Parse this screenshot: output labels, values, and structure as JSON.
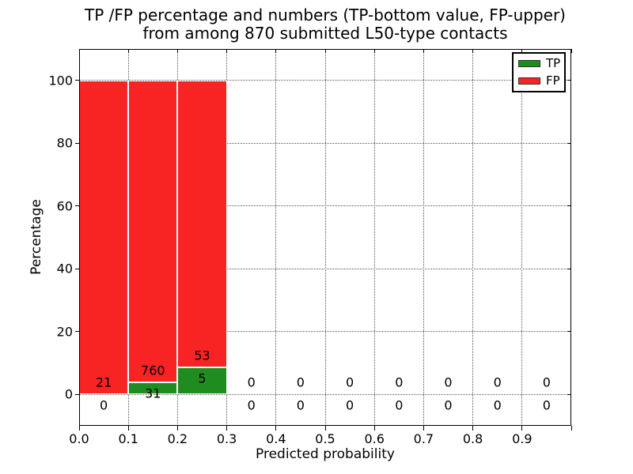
{
  "title": {
    "line1": "TP /FP percentage and numbers (TP-bottom value, FP-upper)",
    "line2": "from among 870 submitted L50-type contacts"
  },
  "axes": {
    "xlabel": "Predicted probability",
    "ylabel": "Percentage"
  },
  "legend": [
    {
      "label": "TP",
      "color": "#1e8c1e"
    },
    {
      "label": "FP",
      "color": "#f82323"
    }
  ],
  "chart_data": {
    "type": "bar",
    "stacked": true,
    "title": "TP /FP percentage and numbers (TP-bottom value, FP-upper) from among 870 submitted L50-type contacts",
    "xlabel": "Predicted probability",
    "ylabel": "Percentage",
    "total_contacts": 870,
    "xlim": [
      0.0,
      1.0
    ],
    "ylim": [
      -10,
      110
    ],
    "grid": "dotted",
    "legend_position": "upper-right",
    "bin_width": 0.1,
    "bin_starts": [
      0.0,
      0.1,
      0.2,
      0.3,
      0.4,
      0.5,
      0.6,
      0.7,
      0.8,
      0.9
    ],
    "x_tick_labels": [
      "0.0",
      "0.1",
      "0.2",
      "0.3",
      "0.4",
      "0.5",
      "0.6",
      "0.7",
      "0.8",
      "0.9"
    ],
    "y_tick_values": [
      0,
      20,
      40,
      60,
      80,
      100
    ],
    "series": [
      {
        "name": "TP",
        "color": "#1e8c1e",
        "counts": [
          0,
          31,
          5,
          0,
          0,
          0,
          0,
          0,
          0,
          0
        ],
        "pct": [
          0,
          3.92,
          8.62,
          0,
          0,
          0,
          0,
          0,
          0,
          0
        ]
      },
      {
        "name": "FP",
        "color": "#f82323",
        "counts": [
          21,
          760,
          53,
          0,
          0,
          0,
          0,
          0,
          0,
          0
        ],
        "pct": [
          100,
          96.08,
          91.38,
          0,
          0,
          0,
          0,
          0,
          0,
          0
        ]
      }
    ]
  }
}
